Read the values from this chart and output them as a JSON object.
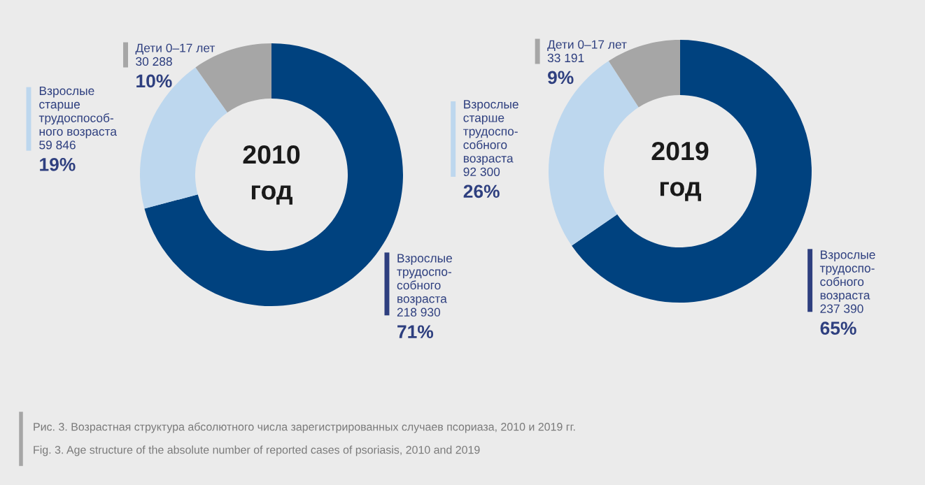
{
  "chart_data": [
    {
      "type": "donut",
      "title": "2010\nгод",
      "categories": [
        "Взрослые\nтрудоспо-\nсобного\nвозраста",
        "Взрослые\nстарше\nтрудоспособ-\nного возраста",
        "Дети 0–17 лет"
      ],
      "values": [
        218930,
        59846,
        30288
      ],
      "colors": [
        "#00427f",
        "#bdd7ee",
        "#a6a6a6"
      ],
      "value_labels": [
        "218 930\n71%",
        "59 846\n19%",
        "30 288\n10%"
      ],
      "annotations": [
        "Рис. 3. Возрастная структура абсолютного числа зарегистрированных случаев псориаза, 2010 и 2019 гг.",
        "Fig. 3. Age structure of the absolute number of reported cases of psoriasis, 2010 and 2019"
      ]
    },
    {
      "type": "donut",
      "title": "2019\nгод",
      "categories": [
        "Взрослые\nтрудоспо-\nсобного\nвозраста",
        "Взрослые\nстарше\nтрудоспо-\nсобного\nвозраста",
        "Дети 0–17 лет"
      ],
      "values": [
        237390,
        92300,
        33191
      ],
      "colors": [
        "#00427f",
        "#bdd7ee",
        "#a6a6a6"
      ],
      "value_labels": [
        "237 390\n65%",
        "92 300\n26%",
        "33 191\n9%"
      ]
    }
  ]
}
